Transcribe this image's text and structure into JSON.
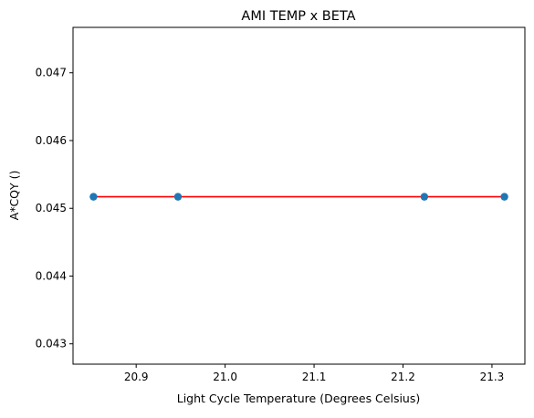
{
  "chart_data": {
    "type": "scatter",
    "title": "AMI TEMP x BETA",
    "xlabel": "Light Cycle Temperature (Degrees Celsius)",
    "ylabel": "A*CQY ()",
    "xlim": [
      20.829,
      21.337
    ],
    "ylim": [
      0.0427,
      0.04767
    ],
    "x_ticks": [
      20.9,
      21.0,
      21.1,
      21.2,
      21.3
    ],
    "x_tick_labels": [
      "20.9",
      "21.0",
      "21.1",
      "21.2",
      "21.3"
    ],
    "y_ticks": [
      0.043,
      0.044,
      0.045,
      0.046,
      0.047
    ],
    "y_tick_labels": [
      "0.043",
      "0.044",
      "0.045",
      "0.046",
      "0.047"
    ],
    "grid": false,
    "series": [
      {
        "kind": "scatter",
        "color": "#1f77b4",
        "points": [
          {
            "x": 20.852,
            "y": 0.04517
          },
          {
            "x": 20.947,
            "y": 0.04517
          },
          {
            "x": 21.224,
            "y": 0.04517
          },
          {
            "x": 21.314,
            "y": 0.04517
          }
        ]
      },
      {
        "kind": "line",
        "color": "#ff0000",
        "points": [
          {
            "x": 20.852,
            "y": 0.04517
          },
          {
            "x": 21.314,
            "y": 0.04517
          }
        ]
      }
    ]
  }
}
